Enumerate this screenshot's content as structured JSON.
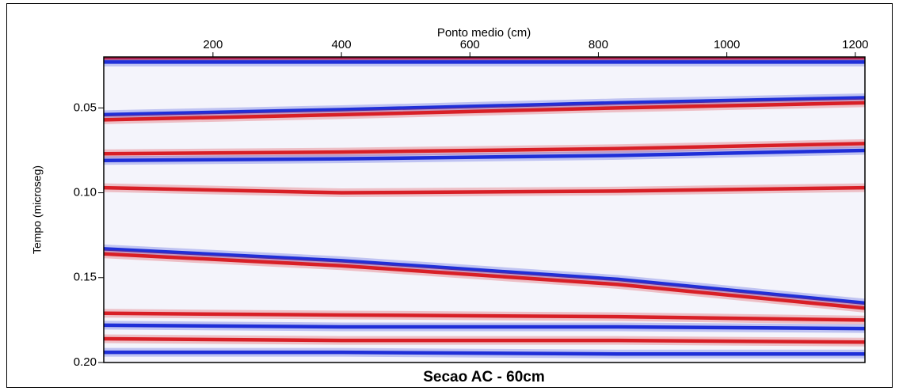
{
  "chart_data": {
    "type": "line",
    "title": "Secao AC - 60cm",
    "x_label": "Ponto medio (cm)",
    "y_label": "Tempo (microseg)",
    "x": [
      30,
      400,
      830,
      1215
    ],
    "series": [
      {
        "color": "#d81f26",
        "values": [
          0.0205,
          0.0205,
          0.0205,
          0.0205
        ]
      },
      {
        "color": "#1f2fd8",
        "values": [
          0.023,
          0.023,
          0.023,
          0.023
        ]
      },
      {
        "color": "#1f2fd8",
        "values": [
          0.054,
          0.051,
          0.047,
          0.044
        ]
      },
      {
        "color": "#d81f26",
        "values": [
          0.057,
          0.054,
          0.05,
          0.047
        ]
      },
      {
        "color": "#d81f26",
        "values": [
          0.077,
          0.076,
          0.074,
          0.071
        ]
      },
      {
        "color": "#1f2fd8",
        "values": [
          0.081,
          0.08,
          0.078,
          0.075
        ]
      },
      {
        "color": "#d81f26",
        "values": [
          0.097,
          0.1,
          0.099,
          0.097
        ]
      },
      {
        "color": "#1f2fd8",
        "values": [
          0.133,
          0.14,
          0.151,
          0.165
        ]
      },
      {
        "color": "#d81f26",
        "values": [
          0.136,
          0.143,
          0.154,
          0.168
        ]
      },
      {
        "color": "#d81f26",
        "values": [
          0.171,
          0.172,
          0.173,
          0.175
        ]
      },
      {
        "color": "#1f2fd8",
        "values": [
          0.178,
          0.179,
          0.179,
          0.18
        ]
      },
      {
        "color": "#d81f26",
        "values": [
          0.186,
          0.187,
          0.187,
          0.188
        ]
      },
      {
        "color": "#1f2fd8",
        "values": [
          0.194,
          0.194,
          0.195,
          0.195
        ]
      }
    ],
    "xlim": [
      30,
      1215
    ],
    "ylim": [
      0.02,
      0.2
    ],
    "y_inverted": true,
    "x_axis_position": "top",
    "xticks": [
      200,
      400,
      600,
      800,
      1000,
      1200
    ],
    "yticks": [
      0.05,
      {
        "value": 0.1,
        "label": "0.10"
      },
      0.15,
      {
        "value": 0.2,
        "label": "0.20"
      }
    ]
  }
}
